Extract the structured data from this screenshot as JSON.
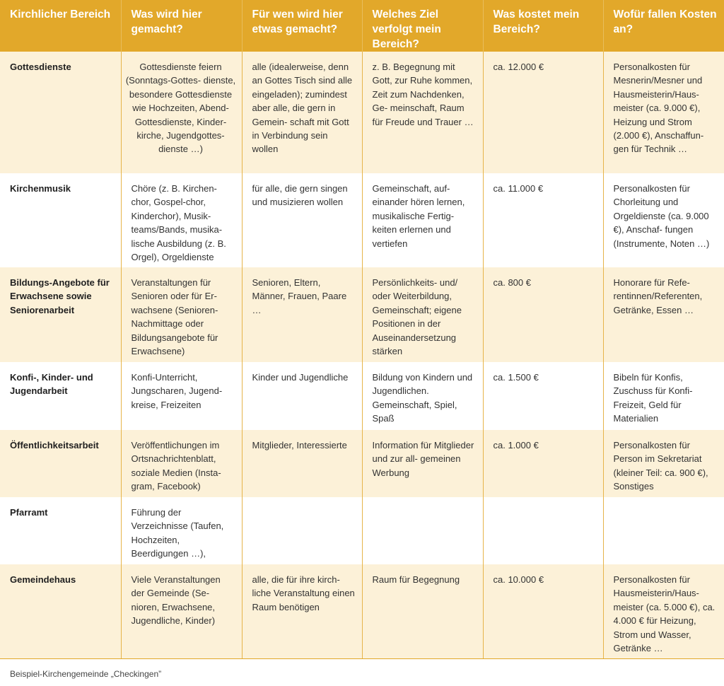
{
  "headers": [
    "Kirchlicher Bereich",
    "Was wird hier gemacht?",
    "Für wen wird hier etwas gemacht?",
    "Welches Ziel verfolgt mein Bereich?",
    "Was kostet mein Bereich?",
    "Wofür fallen Kosten an?"
  ],
  "rows": [
    {
      "bereich": "Gottesdienste",
      "was": "Gottesdienste feiern (Sonntags-Gottes- dienste, besondere Gottesdienste wie Hochzeiten, Abend- Gottesdienste, Kinder- kirche, Jugendgottes- dienste …)",
      "wen": "alle (idealerweise, denn an Gottes Tisch sind alle eingeladen); zumindest aber alle, die gern in Gemein- schaft mit Gott in Verbindung sein wollen",
      "ziel": "z. B. Begegnung mit Gott, zur Ruhe kommen, Zeit zum Nachdenken, Ge- meinschaft, Raum für Freude und Trauer …",
      "kosten": "ca. 12.000 €",
      "wofuer": "Personalkosten für Mesnerin/Mesner und Hausmeisterin/Haus- meister (ca. 9.000 €), Heizung und Strom (2.000 €), Anschaffun- gen für Technik …"
    },
    {
      "bereich": "Kirchenmusik",
      "was": "Chöre (z. B. Kirchen- chor, Gospel-chor, Kinderchor), Musik- teams/Bands, musika- lische Ausbildung (z. B. Orgel), Orgeldienste",
      "wen": "für alle, die gern singen und musizieren wollen",
      "ziel": "Gemeinschaft, auf- einander hören lernen, musikalische Fertig- keiten erlernen und vertiefen",
      "kosten": "ca. 11.000 €",
      "wofuer": "Personalkosten für Chorleitung und Orgeldienste (ca. 9.000 €), Anschaf- fungen (Instrumente, Noten …)"
    },
    {
      "bereich": "Bildungs-Angebote für Erwachsene sowie Seniorenarbeit",
      "was": "Veranstaltungen für Senioren oder für Er- wachsene (Senioren- Nachmittage oder Bildungsangebote für Erwachsene)",
      "wen": "Senioren, Eltern, Männer, Frauen, Paare …",
      "ziel": "Persönlichkeits- und/ oder Weiterbildung, Gemeinschaft; eigene Positionen in der Auseinandersetzung stärken",
      "kosten": "ca. 800 €",
      "wofuer": "Honorare für Refe- rentinnen/Referenten, Getränke, Essen …"
    },
    {
      "bereich": "Konfi-, Kinder- und Jugendarbeit",
      "was": "Konfi-Unterricht, Jungscharen, Jugend- kreise, Freizeiten",
      "wen": "Kinder und Jugendliche",
      "ziel": "Bildung von Kindern und Jugendlichen. Gemeinschaft, Spiel, Spaß",
      "kosten": "ca. 1.500 €",
      "wofuer": "Bibeln für Konfis, Zuschuss für Konfi- Freizeit, Geld für Materialien"
    },
    {
      "bereich": "Öffentlichkeitsarbeit",
      "was": "Veröffentlichungen im Ortsnachrichtenblatt, soziale Medien (Insta- gram, Facebook)",
      "wen": "Mitglieder, Interessierte",
      "ziel": "Information für Mitglieder und zur all- gemeinen Werbung",
      "kosten": "ca. 1.000 €",
      "wofuer": "Personalkosten für Person im Sekretariat (kleiner Teil: ca. 900 €), Sonstiges"
    },
    {
      "bereich": "Pfarramt",
      "was": "Führung der Verzeichnisse (Taufen, Hochzeiten, Beerdigungen …),",
      "wen": "",
      "ziel": "",
      "kosten": "",
      "wofuer": ""
    },
    {
      "bereich": "Gemeindehaus",
      "was": "Viele Veranstaltungen der Gemeinde (Se- nioren, Erwachsene, Jugendliche, Kinder)",
      "wen": "alle, die für ihre kirch- liche Veranstaltung einen Raum benötigen",
      "ziel": "Raum für Begegnung",
      "kosten": "ca. 10.000 €",
      "wofuer": "Personalkosten für Hausmeisterin/Haus- meister (ca. 5.000 €), ca. 4.000 € für Heizung, Strom und Wasser, Getränke …"
    }
  ],
  "footer": "Beispiel-Kirchengemeinde „Checkingen”"
}
